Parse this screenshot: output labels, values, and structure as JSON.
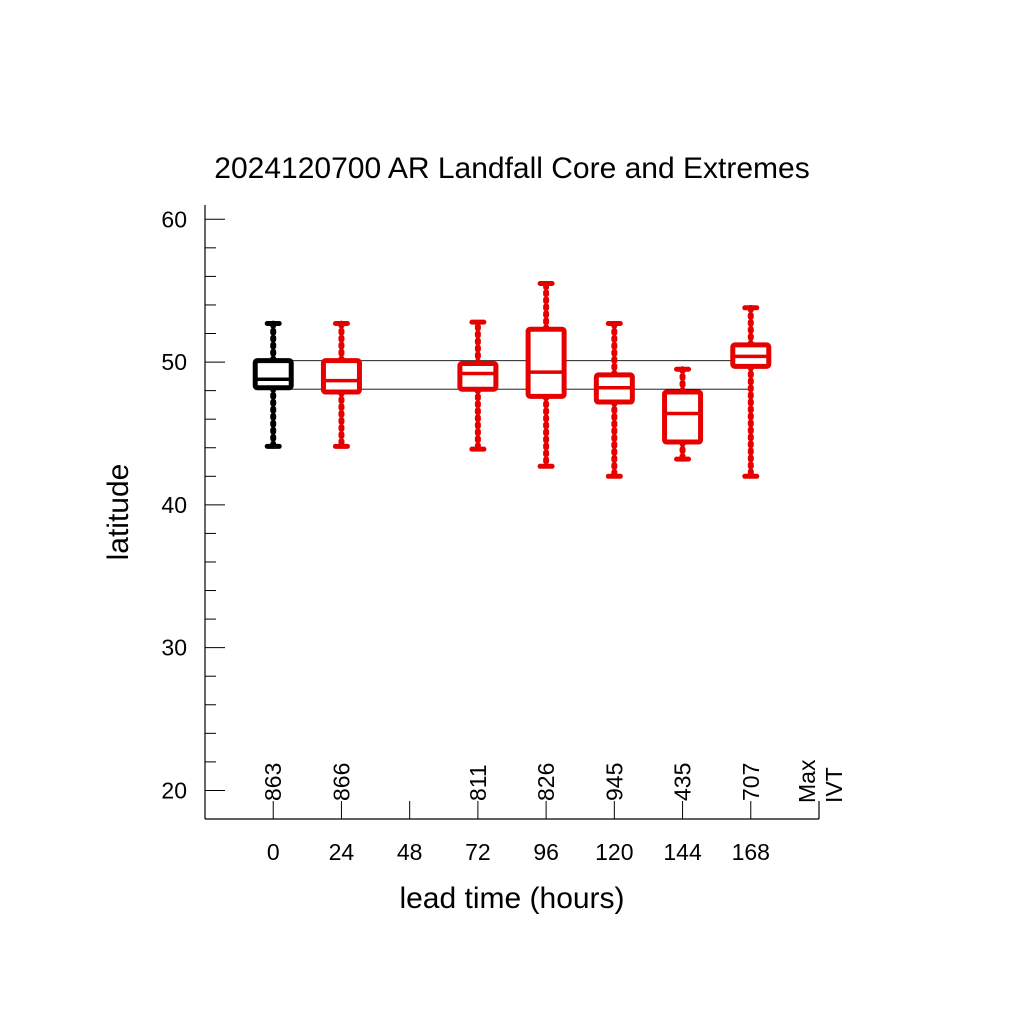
{
  "chart_data": {
    "type": "boxplot",
    "title": "2024120700 AR Landfall Core and Extremes",
    "xlabel": "lead time (hours)",
    "ylabel": "latitude",
    "xticks": [
      "0",
      "24",
      "48",
      "72",
      "96",
      "120",
      "144",
      "168"
    ],
    "yticks": [
      "20",
      "30",
      "40",
      "50",
      "60"
    ],
    "xlim": [
      -24,
      192
    ],
    "ylim": [
      18,
      61
    ],
    "right_label_lines": [
      "Max",
      "IVT"
    ],
    "reference_lines": [
      48.1,
      50.1
    ],
    "colors": {
      "analysis": "#000000",
      "forecast": "#e60000",
      "axis": "#000000",
      "reference": "#000000"
    },
    "boxes": [
      {
        "x": 0,
        "min": 44.1,
        "q1": 48.2,
        "median": 48.8,
        "q3": 50.1,
        "max": 52.7,
        "max_ivt": "863",
        "color": "analysis"
      },
      {
        "x": 24,
        "min": 44.1,
        "q1": 47.9,
        "median": 48.7,
        "q3": 50.1,
        "max": 52.7,
        "max_ivt": "866",
        "color": "forecast"
      },
      {
        "x": 72,
        "min": 43.9,
        "q1": 48.1,
        "median": 49.2,
        "q3": 49.9,
        "max": 52.8,
        "max_ivt": "811",
        "color": "forecast"
      },
      {
        "x": 96,
        "min": 42.7,
        "q1": 47.6,
        "median": 49.3,
        "q3": 52.3,
        "max": 55.5,
        "max_ivt": "826",
        "color": "forecast"
      },
      {
        "x": 120,
        "min": 42.0,
        "q1": 47.2,
        "median": 48.2,
        "q3": 49.1,
        "max": 52.7,
        "max_ivt": "945",
        "color": "forecast"
      },
      {
        "x": 144,
        "min": 43.2,
        "q1": 44.4,
        "median": 46.4,
        "q3": 47.9,
        "max": 49.5,
        "max_ivt": "435",
        "color": "forecast"
      },
      {
        "x": 168,
        "min": 42.0,
        "q1": 49.7,
        "median": 50.4,
        "q3": 51.2,
        "max": 53.8,
        "max_ivt": "707",
        "color": "forecast"
      }
    ]
  }
}
